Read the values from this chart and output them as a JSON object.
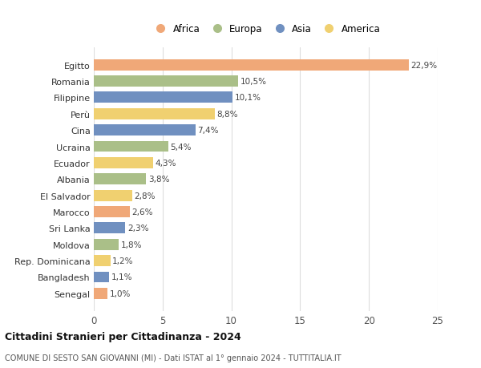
{
  "countries": [
    "Egitto",
    "Romania",
    "Filippine",
    "Perù",
    "Cina",
    "Ucraina",
    "Ecuador",
    "Albania",
    "El Salvador",
    "Marocco",
    "Sri Lanka",
    "Moldova",
    "Rep. Dominicana",
    "Bangladesh",
    "Senegal"
  ],
  "values": [
    22.9,
    10.5,
    10.1,
    8.8,
    7.4,
    5.4,
    4.3,
    3.8,
    2.8,
    2.6,
    2.3,
    1.8,
    1.2,
    1.1,
    1.0
  ],
  "labels": [
    "22,9%",
    "10,5%",
    "10,1%",
    "8,8%",
    "7,4%",
    "5,4%",
    "4,3%",
    "3,8%",
    "2,8%",
    "2,6%",
    "2,3%",
    "1,8%",
    "1,2%",
    "1,1%",
    "1,0%"
  ],
  "continents": [
    "Africa",
    "Europa",
    "Asia",
    "America",
    "Asia",
    "Europa",
    "America",
    "Europa",
    "America",
    "Africa",
    "Asia",
    "Europa",
    "America",
    "Asia",
    "Africa"
  ],
  "continent_colors": {
    "Africa": "#F0A878",
    "Europa": "#AABF88",
    "Asia": "#7090C0",
    "America": "#F0D070"
  },
  "legend_order": [
    "Africa",
    "Europa",
    "Asia",
    "America"
  ],
  "xlim": [
    0,
    25
  ],
  "xticks": [
    0,
    5,
    10,
    15,
    20,
    25
  ],
  "title": "Cittadini Stranieri per Cittadinanza - 2024",
  "subtitle": "COMUNE DI SESTO SAN GIOVANNI (MI) - Dati ISTAT al 1° gennaio 2024 - TUTTITALIA.IT",
  "background_color": "#ffffff",
  "bar_height": 0.68,
  "grid_color": "#dddddd"
}
